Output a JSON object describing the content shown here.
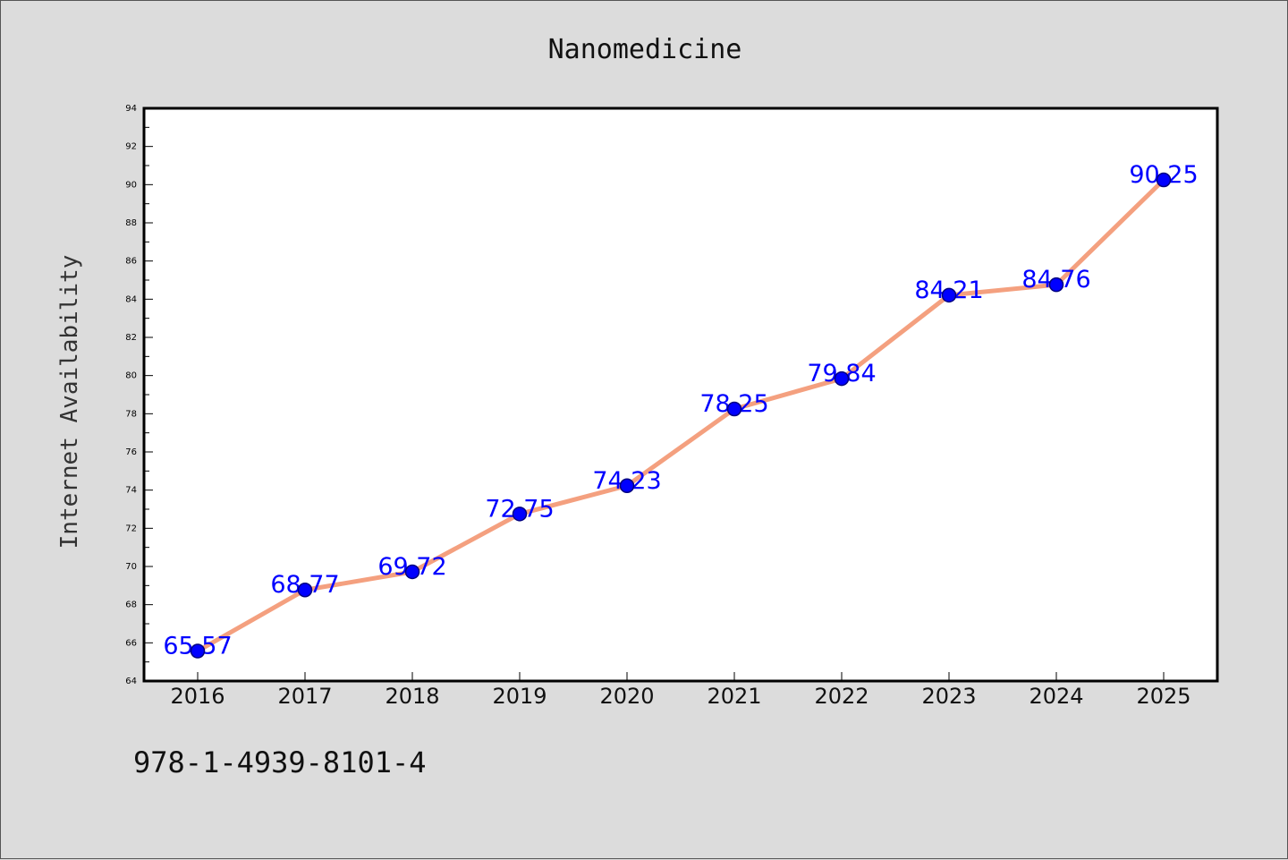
{
  "chart_data": {
    "type": "line",
    "title": "Nanomedicine",
    "xlabel": "",
    "ylabel": "Internet Availability",
    "categories": [
      "2016",
      "2017",
      "2018",
      "2019",
      "2020",
      "2021",
      "2022",
      "2023",
      "2024",
      "2025"
    ],
    "series": [
      {
        "values": [
          65.57,
          68.77,
          69.72,
          72.75,
          74.23,
          78.25,
          79.84,
          84.21,
          84.76,
          90.25
        ],
        "data_labels": [
          "65.57",
          "68.77",
          "69.72",
          "72.75",
          "74.23",
          "78.25",
          "79.84",
          "84.21",
          "84.76",
          "90.25"
        ]
      }
    ],
    "ylim": [
      64,
      94
    ],
    "yticks": [
      "64",
      "66",
      "68",
      "70",
      "72",
      "74",
      "76",
      "78",
      "80",
      "82",
      "84",
      "86",
      "88",
      "90",
      "92",
      "94"
    ],
    "grid": false,
    "legend": "none",
    "colors": {
      "line": "#f4a07f",
      "marker": "#0000ff",
      "marker_edge": "#000080",
      "label": "#0000ff",
      "plot_bg": "#ffffff",
      "figure_bg": "#dcdcdc"
    }
  },
  "footnote": "978-1-4939-8101-4"
}
